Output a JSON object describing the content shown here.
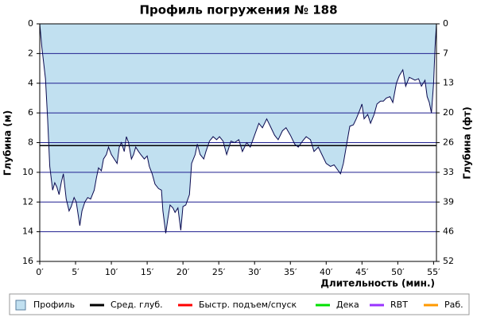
{
  "chart_data": {
    "type": "area",
    "title": "Профиль погружения № 188",
    "y_label": "Глубина (м)",
    "y2_label": "Глубина (фт)",
    "x_label": "Длительность (мин.)",
    "xlim": [
      0,
      55.4
    ],
    "ylim": [
      0,
      16
    ],
    "y2lim": [
      0,
      52.49
    ],
    "inverted_y": true,
    "xticks": [
      {
        "value": 0,
        "label": "0′"
      },
      {
        "value": 5,
        "label": "5′"
      },
      {
        "value": 10,
        "label": "10′"
      },
      {
        "value": 15,
        "label": "15′"
      },
      {
        "value": 20,
        "label": "20′"
      },
      {
        "value": 25,
        "label": "25′"
      },
      {
        "value": 30,
        "label": "30′"
      },
      {
        "value": 35,
        "label": "35′"
      },
      {
        "value": 40,
        "label": "40′"
      },
      {
        "value": 45,
        "label": "45′"
      },
      {
        "value": 50,
        "label": "50′"
      },
      {
        "value": 55,
        "label": "55′"
      }
    ],
    "yticks": [
      0,
      2,
      4,
      6,
      8,
      10,
      12,
      14,
      16
    ],
    "y2ticks": [
      0,
      {
        "value": 6.56,
        "label": "7"
      },
      {
        "value": 13.12,
        "label": "13"
      },
      {
        "value": 19.69,
        "label": "20"
      },
      {
        "value": 26.25,
        "label": "26"
      },
      {
        "value": 32.81,
        "label": "33"
      },
      {
        "value": 39.37,
        "label": "39"
      },
      {
        "value": 45.93,
        "label": "46"
      },
      {
        "value": 52.49,
        "label": "52"
      }
    ],
    "grid": true,
    "grid_color": "#1f1f8f",
    "series": [
      {
        "name": "Профиль",
        "color": "#c1e0f0",
        "line_color": "#0a0a50",
        "x": [
          0,
          0.3,
          0.8,
          1.1,
          1.4,
          1.8,
          2.1,
          2.4,
          2.7,
          3.0,
          3.3,
          3.7,
          4.1,
          4.4,
          4.8,
          5.1,
          5.6,
          5.9,
          6.3,
          6.7,
          7.1,
          7.6,
          7.9,
          8.2,
          8.6,
          8.9,
          9.3,
          9.6,
          10.0,
          10.4,
          10.8,
          11.1,
          11.4,
          11.8,
          12.1,
          12.4,
          12.8,
          13.1,
          13.4,
          13.8,
          14.1,
          14.6,
          15.0,
          15.3,
          15.7,
          16.1,
          16.6,
          17.0,
          17.2,
          17.6,
          17.9,
          18.2,
          18.6,
          18.9,
          19.3,
          19.7,
          20.0,
          20.4,
          20.9,
          21.2,
          21.7,
          22.0,
          22.4,
          22.9,
          23.2,
          23.7,
          24.2,
          24.7,
          25.1,
          25.6,
          26.1,
          26.7,
          27.2,
          27.8,
          28.3,
          28.9,
          29.4,
          30.0,
          30.6,
          31.1,
          31.7,
          32.2,
          32.8,
          33.3,
          33.9,
          34.4,
          35.0,
          35.6,
          36.1,
          36.7,
          37.2,
          37.8,
          38.3,
          38.9,
          39.4,
          40.0,
          40.6,
          41.1,
          41.7,
          42.0,
          42.4,
          42.9,
          43.3,
          43.8,
          44.2,
          44.7,
          45.0,
          45.3,
          45.8,
          46.2,
          46.7,
          47.1,
          47.6,
          48.0,
          48.4,
          48.9,
          49.3,
          49.8,
          50.2,
          50.7,
          51.1,
          51.6,
          52.0,
          52.4,
          52.9,
          53.3,
          53.8,
          54.1,
          54.4,
          54.7,
          55.0,
          55.2,
          55.4
        ],
        "values": [
          0,
          1.6,
          3.7,
          6.4,
          9.6,
          11.2,
          10.7,
          11.0,
          11.5,
          10.7,
          10.1,
          11.8,
          12.6,
          12.3,
          11.7,
          12.0,
          13.6,
          12.6,
          12.0,
          11.7,
          11.8,
          11.2,
          10.4,
          9.7,
          9.9,
          9.1,
          8.8,
          8.3,
          8.8,
          9.1,
          9.4,
          8.3,
          8.0,
          8.6,
          7.6,
          8.0,
          9.1,
          8.8,
          8.3,
          8.6,
          8.8,
          9.1,
          8.9,
          9.6,
          10.1,
          10.8,
          11.1,
          11.2,
          12.6,
          14.1,
          13.1,
          12.2,
          12.4,
          12.7,
          12.4,
          13.9,
          12.3,
          12.2,
          11.5,
          9.4,
          8.8,
          8.1,
          8.8,
          9.1,
          8.6,
          7.9,
          7.6,
          7.8,
          7.6,
          7.9,
          8.8,
          7.9,
          8.0,
          7.8,
          8.6,
          8.0,
          8.3,
          7.5,
          6.7,
          7.0,
          6.4,
          6.9,
          7.5,
          7.8,
          7.2,
          7.0,
          7.5,
          8.1,
          8.3,
          7.9,
          7.6,
          7.8,
          8.6,
          8.3,
          8.8,
          9.4,
          9.6,
          9.5,
          9.9,
          10.1,
          9.4,
          8.0,
          6.9,
          6.8,
          6.4,
          5.8,
          5.4,
          6.4,
          6.1,
          6.7,
          6.1,
          5.4,
          5.2,
          5.2,
          5.0,
          4.9,
          5.3,
          4.0,
          3.5,
          3.1,
          4.2,
          3.6,
          3.7,
          3.8,
          3.7,
          4.2,
          3.8,
          4.9,
          5.3,
          6.0,
          4.0,
          1.6,
          0
        ]
      }
    ],
    "avg_depth": {
      "name": "Сред. глуб.",
      "color": "#000000",
      "value": 8.2
    },
    "legend_extra": [
      {
        "name": "Быстр. подъем/спуск",
        "color": "#ff0000"
      },
      {
        "name": "Дека",
        "color": "#00e000"
      },
      {
        "name": "RBT",
        "color": "#9933ff"
      },
      {
        "name": "Раб.",
        "color": "#ff9900"
      }
    ]
  }
}
